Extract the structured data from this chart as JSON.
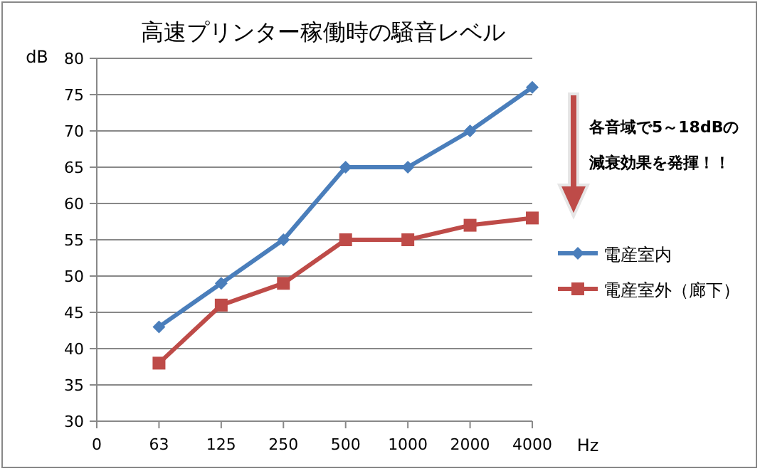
{
  "chart_data": {
    "type": "line",
    "title": "高速プリンター稼働時の騒音レベル",
    "xlabel": "Hz",
    "ylabel": "dB",
    "categories": [
      "0",
      "63",
      "125",
      "250",
      "500",
      "1000",
      "2000",
      "4000"
    ],
    "series": [
      {
        "name": "電産室内",
        "color": "#4a7ebb",
        "marker": "diamond",
        "values": [
          null,
          43,
          49,
          55,
          65,
          65,
          70,
          76
        ]
      },
      {
        "name": "電産室外（廊下）",
        "color": "#be4b48",
        "marker": "square",
        "values": [
          null,
          38,
          46,
          49,
          55,
          55,
          57,
          58
        ]
      }
    ],
    "ylim": [
      30,
      80
    ],
    "yticks": [
      30,
      35,
      40,
      45,
      50,
      55,
      60,
      65,
      70,
      75,
      80
    ],
    "grid": "y",
    "legend": "right",
    "annotations": [
      "各音域で5～18dBの減衰効果を発揮！！"
    ]
  }
}
